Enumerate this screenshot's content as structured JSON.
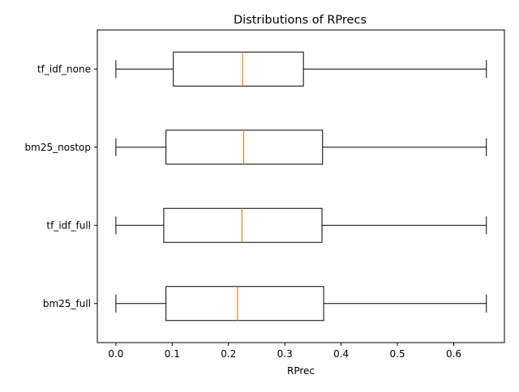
{
  "chart_data": {
    "type": "boxplot",
    "orientation": "horizontal",
    "title": "Distributions of RPrecs",
    "xlabel": "RPrec",
    "ylabel": "",
    "xlim": [
      -0.033,
      0.69
    ],
    "xticks": [
      "0.0",
      "0.1",
      "0.2",
      "0.3",
      "0.4",
      "0.5",
      "0.6"
    ],
    "xtick_values": [
      0.0,
      0.1,
      0.2,
      0.3,
      0.4,
      0.5,
      0.6
    ],
    "grid": false,
    "categories": [
      "bm25_full",
      "tf_idf_full",
      "bm25_nostop",
      "tf_idf_none"
    ],
    "boxes": [
      {
        "name": "bm25_full",
        "whisker_low": 0.0,
        "q1": 0.089,
        "median": 0.216,
        "q3": 0.369,
        "whisker_high": 0.658
      },
      {
        "name": "tf_idf_full",
        "whisker_low": 0.0,
        "q1": 0.085,
        "median": 0.224,
        "q3": 0.366,
        "whisker_high": 0.658
      },
      {
        "name": "bm25_nostop",
        "whisker_low": 0.0,
        "q1": 0.089,
        "median": 0.227,
        "q3": 0.367,
        "whisker_high": 0.658
      },
      {
        "name": "tf_idf_none",
        "whisker_low": 0.0,
        "q1": 0.102,
        "median": 0.225,
        "q3": 0.333,
        "whisker_high": 0.658
      }
    ],
    "colors": {
      "box": "#000000",
      "median": "#ff7f0e",
      "background": "#ffffff"
    }
  }
}
